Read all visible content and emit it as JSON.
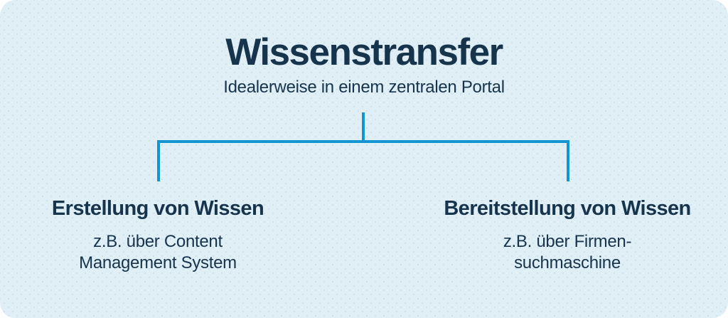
{
  "header": {
    "title": "Wissenstransfer",
    "subtitle": "Idealerweise in einem zentralen Portal"
  },
  "branches": [
    {
      "heading": "Erstellung von Wissen",
      "detail_lines": [
        "z.B. über Content",
        "Management System"
      ]
    },
    {
      "heading": "Bereitstellung von Wissen",
      "detail_lines": [
        "z.B. über Firmen-",
        "suchmaschine"
      ]
    }
  ],
  "colors": {
    "background": "#e0eef6",
    "dot": "#cce1ee",
    "text": "#16344b",
    "connector": "#1295d2"
  }
}
